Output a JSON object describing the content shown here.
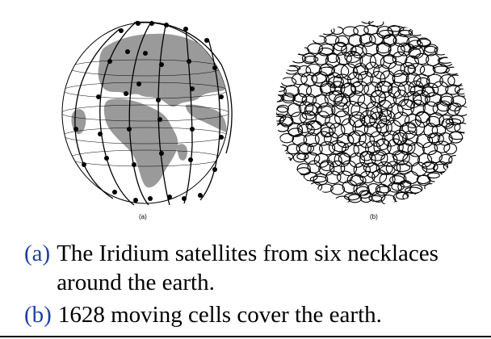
{
  "figures": [
    {
      "id": "a",
      "label": "(a)"
    },
    {
      "id": "b",
      "label": "(b)"
    }
  ],
  "caption": [
    {
      "marker": "(a)",
      "text": "The Iridium satellites from six necklaces around the earth."
    },
    {
      "marker": "(b)",
      "text": "1628 moving cells cover the earth."
    }
  ],
  "colors": {
    "marker": "#1f3ea6",
    "land": "#9a9a9a",
    "ocean": "#ffffff",
    "lines": "#000000"
  }
}
